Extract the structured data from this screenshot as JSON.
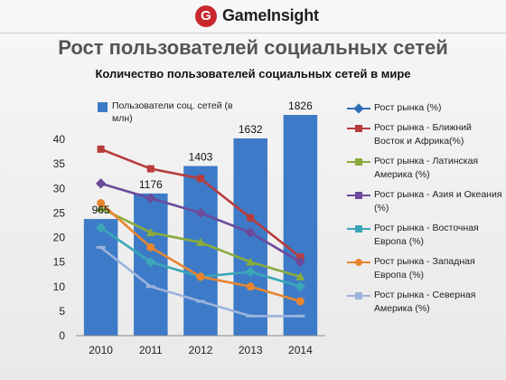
{
  "header": {
    "logo_letter": "G",
    "logo_text": "GameInsight"
  },
  "slide_title": "Рост пользователей социальных сетей",
  "colors": {
    "bar": "#3d7bc8",
    "series": [
      "#2f6fb5",
      "#b83c3c",
      "#8aab3c",
      "#6c4a9b",
      "#3aa6b8",
      "#e8852f",
      "#9db3dc"
    ]
  },
  "chart_data": {
    "type": "bar",
    "title": "Количество пользователей социальных сетей в мире",
    "categories": [
      "2010",
      "2011",
      "2012",
      "2013",
      "2014"
    ],
    "ylim": [
      0,
      40
    ],
    "yticks": [
      "0",
      "5",
      "10",
      "15",
      "20",
      "25",
      "30",
      "35",
      "40"
    ],
    "bar_series": {
      "name": "Пользователи соц. сетей (в млн)",
      "values": [
        965,
        1176,
        1403,
        1632,
        1826
      ],
      "value_labels": [
        "965",
        "1176",
        "1403",
        "1632",
        "1826"
      ]
    },
    "line_series": [
      {
        "name": "Рост рынка (%)",
        "values": [
          null,
          null,
          null,
          null,
          null
        ]
      },
      {
        "name": "Рост рынка - Ближний Восток и Африка(%)",
        "values": [
          38,
          34,
          32,
          24,
          16
        ]
      },
      {
        "name": "Рост рынка - Латинская Америка (%)",
        "values": [
          26,
          21,
          19,
          15,
          12
        ]
      },
      {
        "name": "Рост рынка - Азия и Океания (%)",
        "values": [
          31,
          28,
          25,
          21,
          15
        ]
      },
      {
        "name": "Рост рынка - Восточная Европа (%)",
        "values": [
          22,
          15,
          12,
          13,
          10
        ]
      },
      {
        "name": "Рост рынка - Западная Европа (%)",
        "values": [
          27,
          18,
          12,
          10,
          7
        ]
      },
      {
        "name": "Рост рынка - Северная Америка (%)",
        "values": [
          18,
          10,
          7,
          4,
          4
        ]
      }
    ],
    "legend_position": "right",
    "grid": false
  }
}
